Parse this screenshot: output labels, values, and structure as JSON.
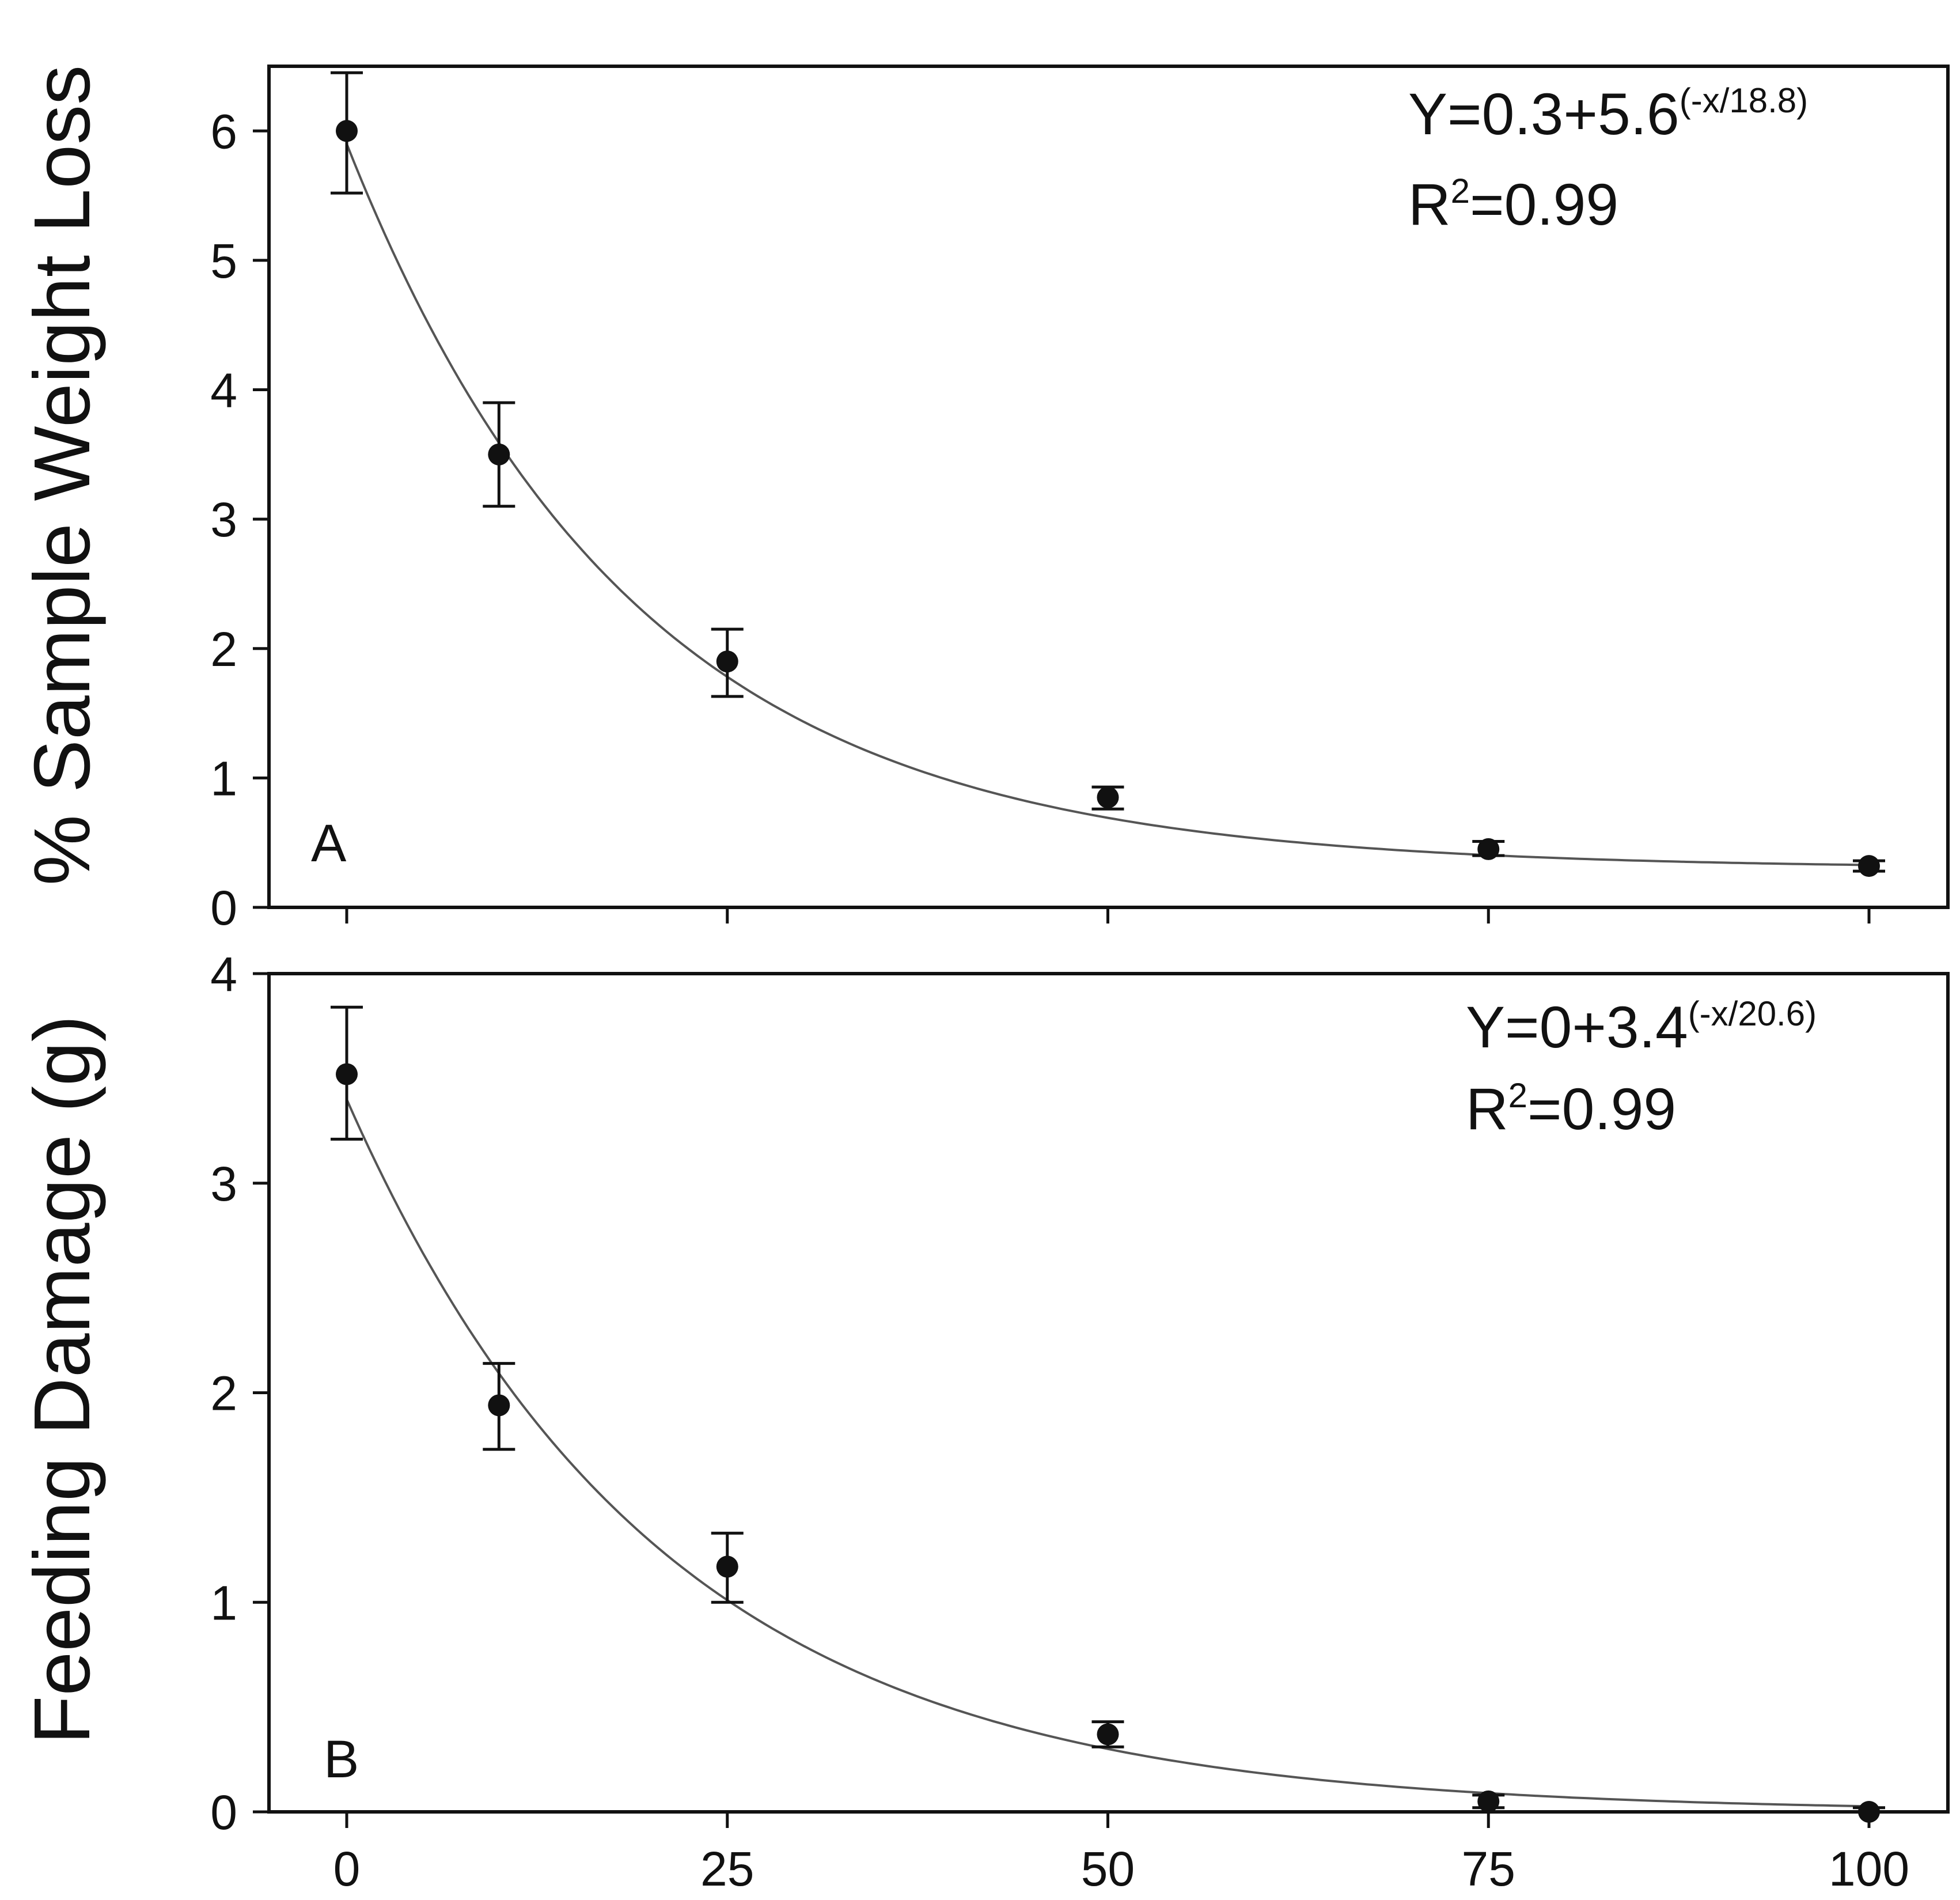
{
  "chart_data": [
    {
      "type": "scatter",
      "panel_label": "A",
      "title": "",
      "xlabel": "",
      "ylabel": "% Sample Weight Loss",
      "xlim": [
        -10,
        105
      ],
      "ylim": [
        0,
        6.5
      ],
      "x_ticks": [
        0,
        25,
        50,
        75,
        100
      ],
      "x_tick_labels": [
        "0",
        "25",
        "50",
        "75",
        "100"
      ],
      "y_ticks": [
        0,
        1,
        2,
        3,
        4,
        5,
        6
      ],
      "y_tick_labels": [
        "0",
        "1",
        "2",
        "3",
        "4",
        "5",
        "6"
      ],
      "grid": false,
      "series": [
        {
          "name": "observed",
          "x": [
            0,
            10,
            25,
            50,
            75,
            100
          ],
          "y": [
            6.0,
            3.5,
            1.9,
            0.85,
            0.45,
            0.32
          ],
          "err_low": [
            5.52,
            3.1,
            1.63,
            0.76,
            0.4,
            0.28
          ],
          "err_high": [
            6.45,
            3.9,
            2.15,
            0.93,
            0.51,
            0.36
          ]
        }
      ],
      "fit": {
        "a": 0.3,
        "b": 5.6,
        "c": 18.8,
        "x_range": [
          0,
          100
        ]
      },
      "annotation": {
        "eq_main": "Y=0.3+5.6",
        "eq_exp": "(-x/18.8)",
        "r2_base": "R",
        "r2_exp": "2",
        "r2_rest": "=0.99"
      }
    },
    {
      "type": "scatter",
      "panel_label": "B",
      "title": "",
      "xlabel": "",
      "ylabel": "Feeding Damage (g)",
      "xlim": [
        -10,
        105
      ],
      "ylim": [
        0,
        4
      ],
      "x_ticks": [
        0,
        25,
        50,
        75,
        100
      ],
      "x_tick_labels": [
        "0",
        "25",
        "50",
        "75",
        "100"
      ],
      "y_ticks": [
        0,
        1,
        2,
        3,
        4
      ],
      "y_tick_labels": [
        "0",
        "1",
        "2",
        "3",
        "4"
      ],
      "grid": false,
      "series": [
        {
          "name": "observed",
          "x": [
            0,
            10,
            25,
            50,
            75,
            100
          ],
          "y": [
            3.52,
            1.94,
            1.17,
            0.37,
            0.05,
            0.0
          ],
          "err_low": [
            3.21,
            1.73,
            1.0,
            0.31,
            0.02,
            0.0
          ],
          "err_high": [
            3.84,
            2.14,
            1.33,
            0.43,
            0.08,
            0.02
          ]
        }
      ],
      "fit": {
        "a": 0,
        "b": 3.4,
        "c": 20.6,
        "x_range": [
          0,
          100
        ]
      },
      "annotation": {
        "eq_main": "Y=0+3.4",
        "eq_exp": "(-x/20.6)",
        "r2_base": "R",
        "r2_exp": "2",
        "r2_rest": "=0.99"
      }
    }
  ]
}
